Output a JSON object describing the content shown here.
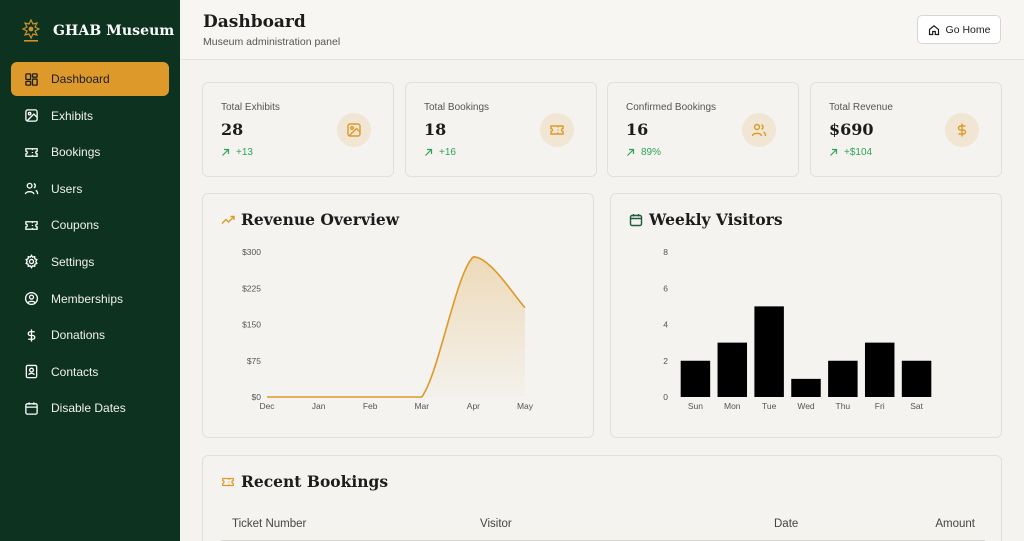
{
  "brand": {
    "name": "GHAB Museum"
  },
  "sidebar": {
    "items": [
      {
        "label": "Dashboard",
        "icon": "dashboard-grid-icon",
        "active": true
      },
      {
        "label": "Exhibits",
        "icon": "image-icon"
      },
      {
        "label": "Bookings",
        "icon": "ticket-icon"
      },
      {
        "label": "Users",
        "icon": "users-icon"
      },
      {
        "label": "Coupons",
        "icon": "coupon-ticket-icon"
      },
      {
        "label": "Settings",
        "icon": "gear-icon"
      },
      {
        "label": "Memberships",
        "icon": "user-circle-icon"
      },
      {
        "label": "Donations",
        "icon": "dollar-icon"
      },
      {
        "label": "Contacts",
        "icon": "contact-card-icon"
      },
      {
        "label": "Disable Dates",
        "icon": "calendar-icon"
      }
    ]
  },
  "header": {
    "title": "Dashboard",
    "subtitle": "Museum administration panel",
    "go_home_label": "Go Home"
  },
  "stats": [
    {
      "label": "Total Exhibits",
      "value": "28",
      "delta": "+13",
      "icon": "image-icon"
    },
    {
      "label": "Total Bookings",
      "value": "18",
      "delta": "+16",
      "icon": "ticket-icon"
    },
    {
      "label": "Confirmed Bookings",
      "value": "16",
      "delta": "89%",
      "icon": "users-icon"
    },
    {
      "label": "Total Revenue",
      "value": "$690",
      "delta": "+$104",
      "icon": "dollar-icon"
    }
  ],
  "revenue_panel": {
    "title": "Revenue Overview"
  },
  "visitors_panel": {
    "title": "Weekly Visitors"
  },
  "chart_data": [
    {
      "type": "area",
      "title": "Revenue Overview",
      "x": [
        "Dec",
        "Jan",
        "Feb",
        "Mar",
        "Apr",
        "May"
      ],
      "values": [
        0,
        0,
        0,
        0,
        290,
        185
      ],
      "yticks": [
        "$0",
        "$75",
        "$150",
        "$225",
        "$300"
      ],
      "ylim": [
        0,
        300
      ],
      "color": "#dd9a2b",
      "grid": false
    },
    {
      "type": "bar",
      "title": "Weekly Visitors",
      "categories": [
        "Sun",
        "Mon",
        "Tue",
        "Wed",
        "Thu",
        "Fri",
        "Sat"
      ],
      "values": [
        2,
        3,
        5,
        1,
        2,
        3,
        2
      ],
      "yticks": [
        "0",
        "2",
        "4",
        "6",
        "8"
      ],
      "ylim": [
        0,
        8
      ],
      "color": "#000000",
      "grid": false
    }
  ],
  "recent_bookings": {
    "title": "Recent Bookings",
    "columns": [
      "Ticket Number",
      "Visitor",
      "Date",
      "Amount"
    ]
  },
  "colors": {
    "accent": "#dd9a2b",
    "sidebar": "#0e3220",
    "positive": "#2fa35a"
  }
}
